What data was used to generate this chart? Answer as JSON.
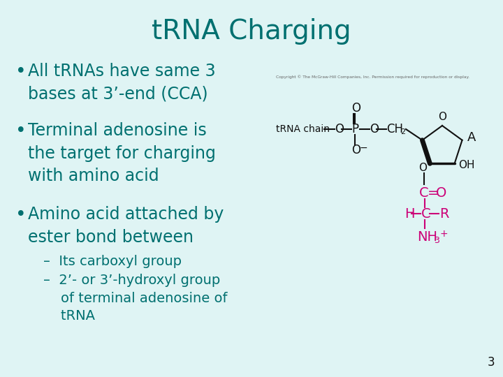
{
  "title": "tRNA Charging",
  "title_color": "#007070",
  "title_fontsize": 28,
  "bg_color": "#dff4f4",
  "bullet_color": "#007070",
  "bullet_fontsize": 17,
  "sub_bullet_fontsize": 14,
  "bullet_items": [
    "All tRNAs have same 3\nbases at 3’-end (CCA)",
    "Terminal adenosine is\nthe target for charging\nwith amino acid",
    "Amino acid attached by\nester bond between"
  ],
  "sub_items": [
    "–  Its carboxyl group",
    "–  2’- or 3’-hydroxyl group\n    of terminal adenosine of\n    tRNA"
  ],
  "black_color": "#111111",
  "magenta_color": "#cc0077",
  "page_number": "3",
  "copyright_text": "Copyright © The McGraw-Hill Companies, Inc. Permission required for reproduction or display."
}
